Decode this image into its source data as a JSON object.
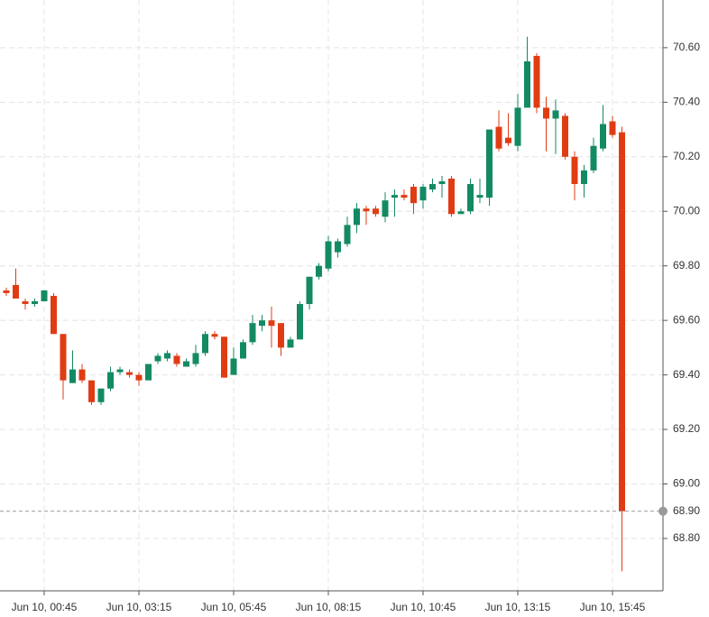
{
  "chart_data": {
    "type": "candlestick",
    "categories": [
      null,
      null,
      null,
      null,
      "Jun 10, 00:45",
      null,
      null,
      null,
      null,
      null,
      null,
      null,
      null,
      null,
      "Jun 10, 03:15",
      null,
      null,
      null,
      null,
      null,
      null,
      null,
      null,
      null,
      "Jun 10, 05:45",
      null,
      null,
      null,
      null,
      null,
      null,
      null,
      null,
      null,
      "Jun 10, 08:15",
      null,
      null,
      null,
      null,
      null,
      null,
      null,
      null,
      null,
      "Jun 10, 10:45",
      null,
      null,
      null,
      null,
      null,
      null,
      null,
      null,
      null,
      "Jun 10, 13:15",
      null,
      null,
      null,
      null,
      null,
      null,
      null,
      null,
      null,
      "Jun 10, 15:45",
      null
    ],
    "open": [
      69.71,
      69.73,
      69.67,
      69.66,
      69.67,
      69.69,
      69.55,
      69.37,
      69.42,
      69.38,
      69.3,
      69.35,
      69.41,
      69.41,
      69.4,
      69.38,
      69.45,
      69.46,
      69.47,
      69.43,
      69.44,
      69.48,
      69.55,
      69.54,
      69.4,
      69.46,
      69.52,
      69.58,
      69.6,
      69.59,
      69.5,
      69.53,
      69.66,
      69.76,
      69.79,
      69.85,
      69.88,
      69.95,
      70.01,
      70.01,
      69.98,
      70.05,
      70.06,
      70.09,
      70.04,
      70.08,
      70.1,
      70.12,
      69.99,
      70.0,
      70.05,
      70.05,
      70.31,
      70.27,
      70.24,
      70.38,
      70.57,
      70.38,
      70.34,
      70.35,
      70.2,
      70.1,
      70.15,
      70.23,
      70.33,
      70.29
    ],
    "high": [
      69.72,
      69.79,
      69.68,
      69.68,
      69.71,
      69.7,
      69.55,
      69.49,
      69.44,
      69.38,
      69.35,
      69.43,
      69.43,
      69.42,
      69.41,
      69.44,
      69.48,
      69.49,
      69.48,
      69.46,
      69.51,
      69.56,
      69.56,
      69.54,
      69.5,
      69.53,
      69.62,
      69.62,
      69.65,
      69.59,
      69.54,
      69.67,
      69.76,
      69.81,
      69.91,
      69.9,
      69.98,
      70.03,
      70.02,
      70.02,
      70.07,
      70.08,
      70.08,
      70.1,
      70.1,
      70.12,
      70.13,
      70.13,
      70.01,
      70.12,
      70.12,
      70.3,
      70.37,
      70.36,
      70.43,
      70.64,
      70.58,
      70.42,
      70.41,
      70.36,
      70.22,
      70.17,
      70.27,
      70.39,
      70.35,
      70.31
    ],
    "low": [
      69.69,
      69.68,
      69.64,
      69.65,
      69.67,
      69.55,
      69.31,
      69.37,
      69.37,
      69.29,
      69.29,
      69.34,
      69.4,
      69.39,
      69.36,
      69.38,
      69.44,
      69.45,
      69.43,
      69.43,
      69.43,
      69.47,
      69.53,
      69.39,
      69.4,
      69.46,
      69.51,
      69.56,
      69.5,
      69.47,
      69.5,
      69.53,
      69.64,
      69.75,
      69.78,
      69.83,
      69.87,
      69.92,
      69.95,
      69.98,
      69.96,
      69.98,
      70.04,
      69.99,
      70.01,
      70.07,
      70.05,
      69.98,
      69.99,
      69.99,
      70.03,
      70.02,
      70.22,
      70.24,
      70.22,
      70.38,
      70.36,
      70.22,
      70.21,
      70.19,
      70.04,
      70.05,
      70.14,
      70.22,
      70.27,
      68.68
    ],
    "close": [
      69.7,
      69.68,
      69.66,
      69.67,
      69.71,
      69.55,
      69.38,
      69.42,
      69.38,
      69.3,
      69.35,
      69.41,
      69.42,
      69.4,
      69.38,
      69.44,
      69.47,
      69.48,
      69.44,
      69.45,
      69.48,
      69.55,
      69.54,
      69.39,
      69.46,
      69.52,
      69.59,
      69.6,
      69.58,
      69.5,
      69.53,
      69.66,
      69.76,
      69.8,
      69.89,
      69.89,
      69.95,
      70.01,
      70.0,
      69.99,
      70.04,
      70.06,
      70.05,
      70.03,
      70.09,
      70.1,
      70.11,
      69.99,
      70.0,
      70.1,
      70.06,
      70.3,
      70.23,
      70.25,
      70.38,
      70.55,
      70.38,
      70.34,
      70.37,
      70.2,
      70.1,
      70.15,
      70.24,
      70.32,
      70.28,
      68.9
    ],
    "up_color": "#138a63",
    "down_color": "#e03c14",
    "ylim": [
      68.608,
      70.775
    ],
    "yticks": [
      {
        "value": 68.8,
        "label": "68.80"
      },
      {
        "value": 69.0,
        "label": "69.00"
      },
      {
        "value": 69.2,
        "label": "69.20"
      },
      {
        "value": 69.4,
        "label": "69.40"
      },
      {
        "value": 69.6,
        "label": "69.60"
      },
      {
        "value": 69.8,
        "label": "69.80"
      },
      {
        "value": 70.0,
        "label": "70.00"
      },
      {
        "value": 70.2,
        "label": "70.20"
      },
      {
        "value": 70.4,
        "label": "70.40"
      },
      {
        "value": 70.6,
        "label": "70.60"
      }
    ],
    "last_price": {
      "value": 68.9,
      "label": "68.90"
    },
    "grid": true
  }
}
